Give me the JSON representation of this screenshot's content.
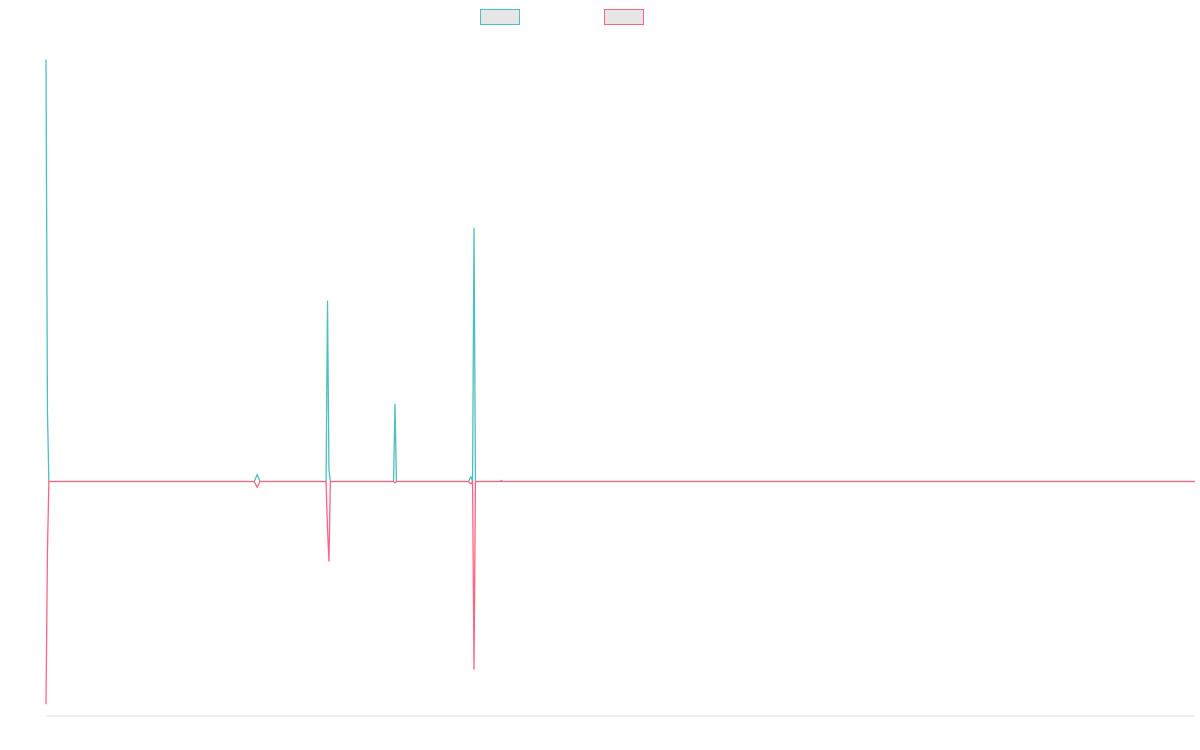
{
  "chart_data": {
    "type": "line",
    "title": "",
    "xlabel": "",
    "ylabel": "",
    "grid": false,
    "legend_placement": "top-center",
    "xlim": [
      0,
      800
    ],
    "ylim": [
      -1.0,
      1.9
    ],
    "x": [
      0,
      1,
      2,
      3,
      4,
      145,
      147,
      149,
      194,
      195,
      196,
      197,
      198,
      199,
      200,
      241,
      242,
      243,
      244,
      245,
      294,
      296,
      297,
      298,
      299,
      300,
      301,
      316,
      317,
      318
    ],
    "series": [
      {
        "name": "",
        "color": "#4bc0c0",
        "values": [
          1.8,
          0.3,
          0,
          0,
          0,
          0,
          0.03,
          0,
          0,
          0,
          0.77,
          0.05,
          0,
          0,
          0,
          0,
          0,
          0.33,
          0,
          0,
          0,
          0.02,
          0,
          1.08,
          0,
          0,
          0,
          0,
          0.005,
          0
        ]
      },
      {
        "name": "",
        "color": "#ff6384",
        "values": [
          -0.95,
          -0.3,
          0,
          0,
          0,
          0,
          -0.025,
          0,
          0,
          0,
          -0.2,
          -0.34,
          0,
          0,
          0,
          0,
          0,
          -0.005,
          0,
          0,
          0,
          -0.01,
          0,
          -0.8,
          0,
          0,
          0,
          0,
          0,
          0
        ]
      }
    ]
  }
}
